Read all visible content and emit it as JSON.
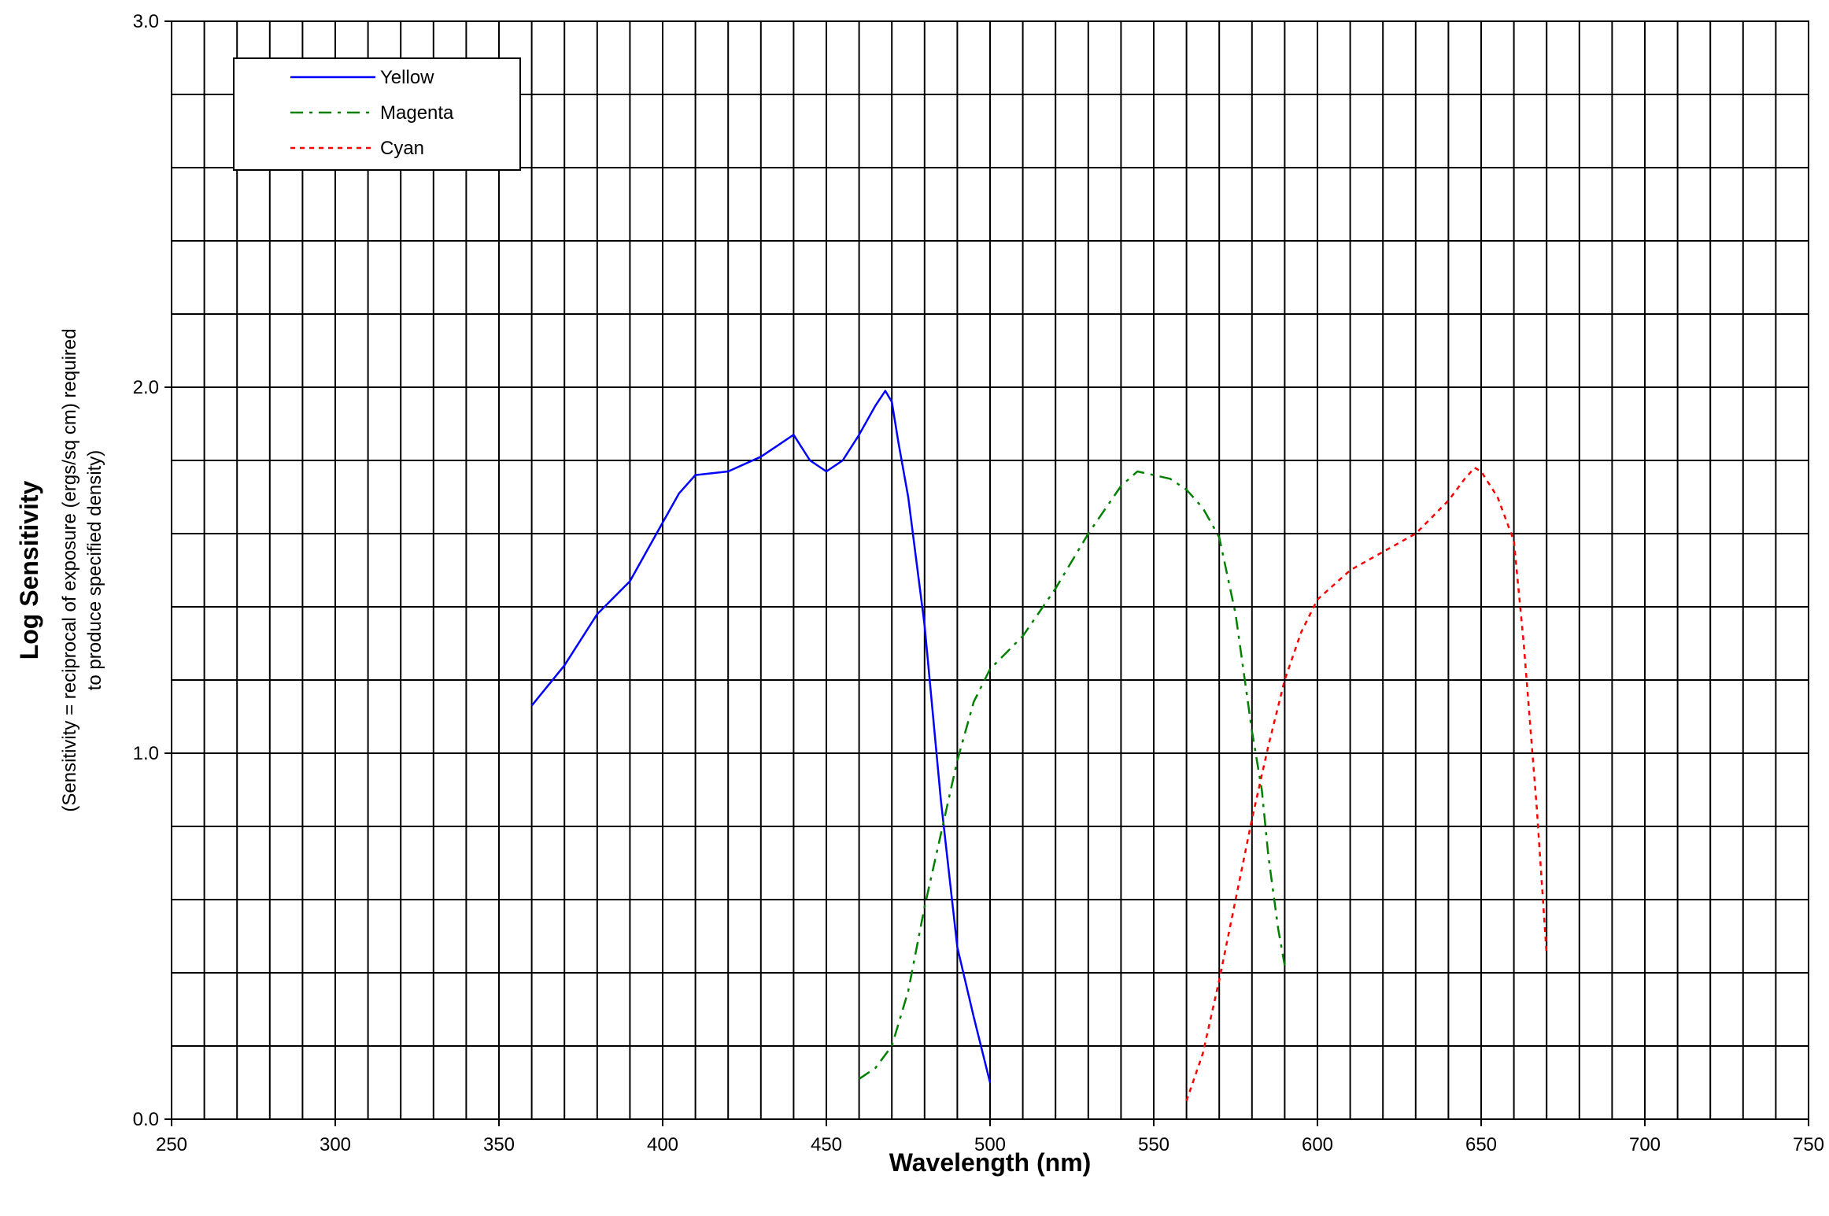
{
  "chart_data": {
    "type": "line",
    "xlabel": "Wavelength (nm)",
    "ylabel": "Log Sensitivity",
    "ylabel_sub": [
      "(Sensitivity = reciprocal of exposure (ergs/sq cm) required",
      "to produce specified density)"
    ],
    "xlim": [
      250,
      750
    ],
    "ylim": [
      0.0,
      3.0
    ],
    "x_ticks": [
      "250",
      "300",
      "350",
      "400",
      "450",
      "500",
      "550",
      "600",
      "650",
      "700",
      "750"
    ],
    "y_ticks": [
      "0.0",
      "1.0",
      "2.0",
      "3.0"
    ],
    "x_grid_step": 10,
    "y_grid_step": 0.2,
    "grid": true,
    "legend_position": "top-left",
    "series": [
      {
        "name": "Yellow",
        "color": "#0000ff",
        "dash": "solid",
        "x": [
          360,
          370,
          380,
          390,
          400,
          405,
          410,
          420,
          430,
          435,
          440,
          445,
          450,
          455,
          460,
          465,
          468,
          470,
          472,
          475,
          480,
          485,
          490,
          495,
          500
        ],
        "y": [
          1.13,
          1.24,
          1.38,
          1.47,
          1.63,
          1.71,
          1.76,
          1.77,
          1.81,
          1.84,
          1.87,
          1.8,
          1.77,
          1.8,
          1.87,
          1.95,
          1.99,
          1.96,
          1.85,
          1.7,
          1.35,
          0.87,
          0.47,
          0.28,
          0.1
        ]
      },
      {
        "name": "Magenta",
        "color": "#008000",
        "dash": "dashdot",
        "x": [
          460,
          465,
          470,
          475,
          480,
          485,
          490,
          495,
          500,
          510,
          520,
          530,
          540,
          545,
          550,
          555,
          560,
          565,
          570,
          575,
          580,
          583,
          585,
          588,
          590
        ],
        "y": [
          0.11,
          0.14,
          0.2,
          0.35,
          0.58,
          0.78,
          0.98,
          1.14,
          1.23,
          1.32,
          1.45,
          1.6,
          1.73,
          1.77,
          1.76,
          1.75,
          1.72,
          1.67,
          1.59,
          1.38,
          1.06,
          0.9,
          0.72,
          0.52,
          0.42
        ]
      },
      {
        "name": "Cyan",
        "color": "#ff0000",
        "dash": "dotted",
        "x": [
          560,
          565,
          570,
          575,
          580,
          585,
          590,
          595,
          600,
          610,
          620,
          630,
          640,
          645,
          648,
          650,
          655,
          660,
          663,
          667,
          670
        ],
        "y": [
          0.05,
          0.18,
          0.38,
          0.6,
          0.82,
          1.02,
          1.2,
          1.33,
          1.42,
          1.5,
          1.55,
          1.6,
          1.69,
          1.75,
          1.78,
          1.77,
          1.7,
          1.58,
          1.3,
          0.85,
          0.45
        ]
      }
    ]
  }
}
